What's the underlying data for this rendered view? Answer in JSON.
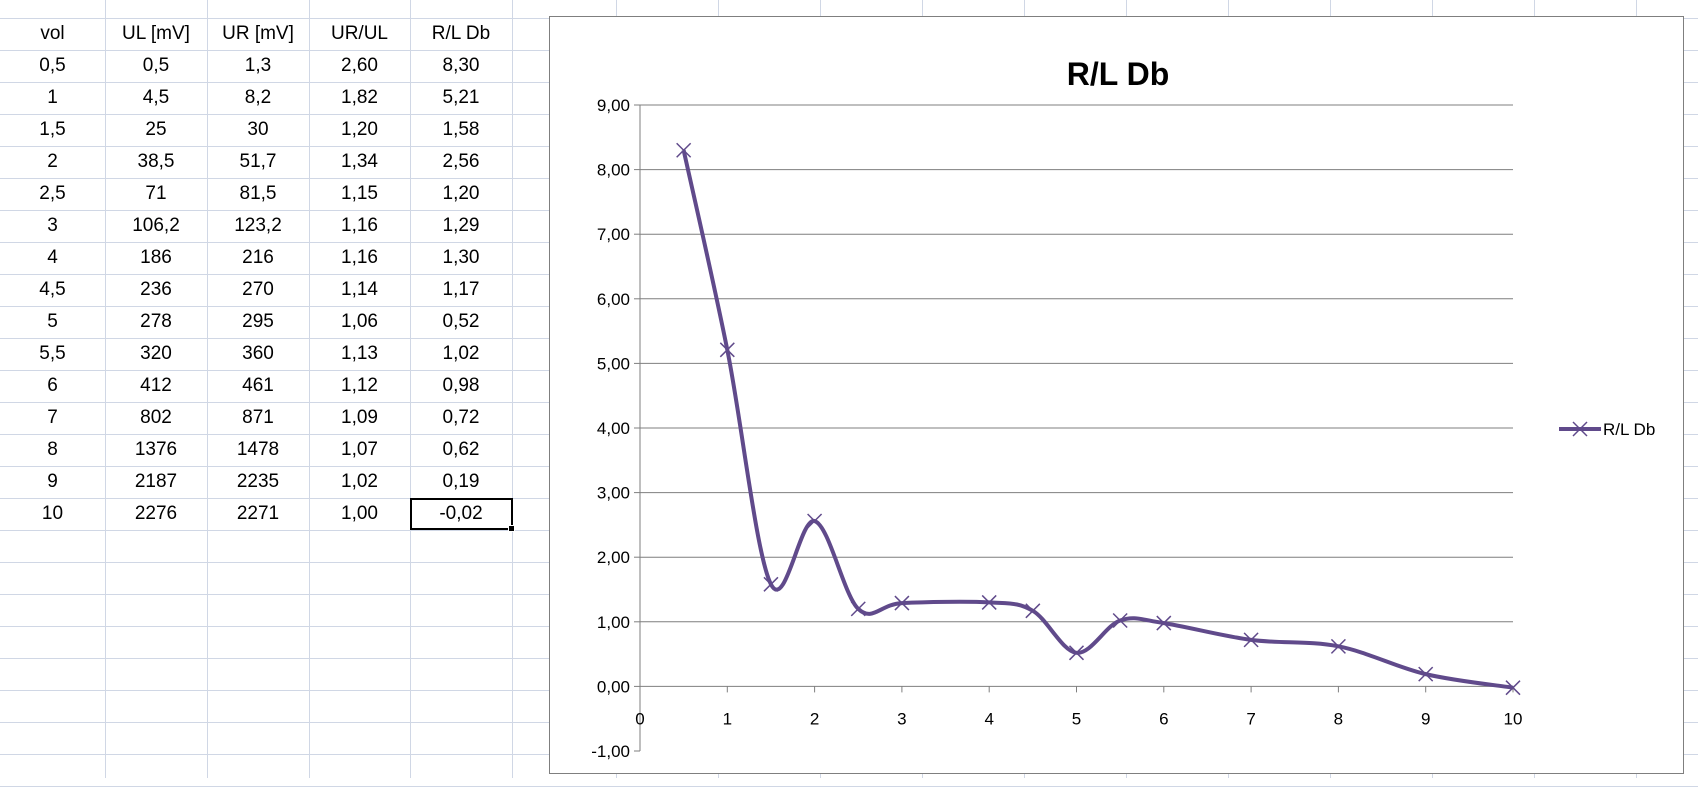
{
  "sheet": {
    "headers": [
      "vol",
      "UL [mV]",
      "UR [mV]",
      "UR/UL",
      "R/L Db"
    ],
    "rows": [
      [
        "0,5",
        "0,5",
        "1,3",
        "2,60",
        "8,30"
      ],
      [
        "1",
        "4,5",
        "8,2",
        "1,82",
        "5,21"
      ],
      [
        "1,5",
        "25",
        "30",
        "1,20",
        "1,58"
      ],
      [
        "2",
        "38,5",
        "51,7",
        "1,34",
        "2,56"
      ],
      [
        "2,5",
        "71",
        "81,5",
        "1,15",
        "1,20"
      ],
      [
        "3",
        "106,2",
        "123,2",
        "1,16",
        "1,29"
      ],
      [
        "4",
        "186",
        "216",
        "1,16",
        "1,30"
      ],
      [
        "4,5",
        "236",
        "270",
        "1,14",
        "1,17"
      ],
      [
        "5",
        "278",
        "295",
        "1,06",
        "0,52"
      ],
      [
        "5,5",
        "320",
        "360",
        "1,13",
        "1,02"
      ],
      [
        "6",
        "412",
        "461",
        "1,12",
        "0,98"
      ],
      [
        "7",
        "802",
        "871",
        "1,09",
        "0,72"
      ],
      [
        "8",
        "1376",
        "1478",
        "1,07",
        "0,62"
      ],
      [
        "9",
        "2187",
        "2235",
        "1,02",
        "0,19"
      ],
      [
        "10",
        "2276",
        "2271",
        "1,00",
        "-0,02"
      ]
    ]
  },
  "chart_data": {
    "type": "scatter",
    "title": "R/L Db",
    "xlabel": "",
    "ylabel": "",
    "xlim": [
      0,
      10
    ],
    "ylim": [
      -1,
      9
    ],
    "x_ticks": [
      "0",
      "1",
      "2",
      "3",
      "4",
      "5",
      "6",
      "7",
      "8",
      "9",
      "10"
    ],
    "y_ticks": [
      "-1,00",
      "0,00",
      "1,00",
      "2,00",
      "3,00",
      "4,00",
      "5,00",
      "6,00",
      "7,00",
      "8,00",
      "9,00"
    ],
    "grid": true,
    "legend_position": "right",
    "line_style": "smooth",
    "marker": "x",
    "series": [
      {
        "name": "R/L Db",
        "color": "#604a8b",
        "x": [
          0.5,
          1,
          1.5,
          2,
          2.5,
          3,
          4,
          4.5,
          5,
          5.5,
          6,
          7,
          8,
          9,
          10
        ],
        "y": [
          8.3,
          5.21,
          1.58,
          2.56,
          1.2,
          1.29,
          1.3,
          1.17,
          0.52,
          1.02,
          0.98,
          0.72,
          0.62,
          0.19,
          -0.02
        ]
      }
    ]
  }
}
